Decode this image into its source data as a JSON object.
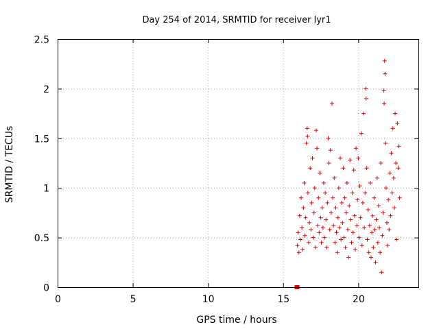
{
  "chart_data": {
    "type": "scatter",
    "title": "Day 254 of 2014, SRMTID for receiver lyr1",
    "xlabel": "GPS time / hours",
    "ylabel": "SRMTID / TECUs",
    "xlim": [
      0,
      24
    ],
    "ylim": [
      0,
      2.5
    ],
    "xticks": [
      0,
      5,
      10,
      15,
      20
    ],
    "yticks": [
      0,
      0.5,
      1,
      1.5,
      2,
      2.5
    ],
    "xtick_labels": [
      "0",
      "5",
      "10",
      "15",
      "20"
    ],
    "ytick_labels": [
      "0",
      "0.5",
      "1",
      "1.5",
      "2",
      "2.5"
    ],
    "grid": true,
    "marker": "+",
    "color": "#e00000",
    "series": [
      {
        "name": "SRMTID",
        "points": [
          [
            15.9,
            0.0
          ],
          [
            15.95,
            0.0
          ],
          [
            15.95,
            0.42
          ],
          [
            16.0,
            0.55
          ],
          [
            16.05,
            0.35
          ],
          [
            16.1,
            0.72
          ],
          [
            16.15,
            0.48
          ],
          [
            16.2,
            0.9
          ],
          [
            16.25,
            0.6
          ],
          [
            16.3,
            0.38
          ],
          [
            16.35,
            0.8
          ],
          [
            16.4,
            1.05
          ],
          [
            16.45,
            0.52
          ],
          [
            16.5,
            0.7
          ],
          [
            16.55,
            1.45
          ],
          [
            16.6,
            1.6
          ],
          [
            16.62,
            1.52
          ],
          [
            16.65,
            0.95
          ],
          [
            16.7,
            0.45
          ],
          [
            16.75,
            0.65
          ],
          [
            16.8,
            1.2
          ],
          [
            16.85,
            0.58
          ],
          [
            16.9,
            0.85
          ],
          [
            16.95,
            1.3
          ],
          [
            17.0,
            0.5
          ],
          [
            17.05,
            0.75
          ],
          [
            17.1,
            1.0
          ],
          [
            17.15,
            0.4
          ],
          [
            17.2,
            1.58
          ],
          [
            17.25,
            1.4
          ],
          [
            17.3,
            0.62
          ],
          [
            17.35,
            0.9
          ],
          [
            17.4,
            0.55
          ],
          [
            17.45,
            1.15
          ],
          [
            17.5,
            0.7
          ],
          [
            17.55,
            0.45
          ],
          [
            17.6,
            0.8
          ],
          [
            17.65,
            0.6
          ],
          [
            17.7,
            1.05
          ],
          [
            17.75,
            0.5
          ],
          [
            17.8,
            0.95
          ],
          [
            17.85,
            0.68
          ],
          [
            17.9,
            0.4
          ],
          [
            17.95,
            0.85
          ],
          [
            18.0,
            1.5
          ],
          [
            18.05,
            1.25
          ],
          [
            18.1,
            0.58
          ],
          [
            18.15,
            1.38
          ],
          [
            18.2,
            0.75
          ],
          [
            18.25,
            1.85
          ],
          [
            18.3,
            0.9
          ],
          [
            18.35,
            0.62
          ],
          [
            18.4,
            1.1
          ],
          [
            18.45,
            0.45
          ],
          [
            18.5,
            0.8
          ],
          [
            18.55,
            0.55
          ],
          [
            18.6,
            0.35
          ],
          [
            18.65,
            0.7
          ],
          [
            18.7,
            1.0
          ],
          [
            18.75,
            0.6
          ],
          [
            18.8,
            1.3
          ],
          [
            18.85,
            0.48
          ],
          [
            18.9,
            0.85
          ],
          [
            18.95,
            0.65
          ],
          [
            19.0,
            1.2
          ],
          [
            19.05,
            0.5
          ],
          [
            19.1,
            0.9
          ],
          [
            19.15,
            0.4
          ],
          [
            19.2,
            0.75
          ],
          [
            19.25,
            1.05
          ],
          [
            19.3,
            0.58
          ],
          [
            19.35,
            0.3
          ],
          [
            19.4,
            0.82
          ],
          [
            19.45,
            1.28
          ],
          [
            19.5,
            0.68
          ],
          [
            19.55,
            0.45
          ],
          [
            19.6,
            0.95
          ],
          [
            19.65,
            0.55
          ],
          [
            19.7,
            1.18
          ],
          [
            19.75,
            0.72
          ],
          [
            19.8,
            0.38
          ],
          [
            19.85,
            1.4
          ],
          [
            19.9,
            0.62
          ],
          [
            19.95,
            0.88
          ],
          [
            20.0,
            1.3
          ],
          [
            20.05,
            0.5
          ],
          [
            20.1,
            1.02
          ],
          [
            20.15,
            0.7
          ],
          [
            20.2,
            1.55
          ],
          [
            20.25,
            0.42
          ],
          [
            20.3,
            0.85
          ],
          [
            20.35,
            1.75
          ],
          [
            20.4,
            0.6
          ],
          [
            20.45,
            0.95
          ],
          [
            20.5,
            2.0
          ],
          [
            20.52,
            1.9
          ],
          [
            20.55,
            1.2
          ],
          [
            20.6,
            0.48
          ],
          [
            20.65,
            0.78
          ],
          [
            20.7,
            0.35
          ],
          [
            20.75,
            0.62
          ],
          [
            20.8,
            1.05
          ],
          [
            20.85,
            0.3
          ],
          [
            20.9,
            0.55
          ],
          [
            20.95,
            0.72
          ],
          [
            21.0,
            0.4
          ],
          [
            21.05,
            0.9
          ],
          [
            21.1,
            0.58
          ],
          [
            21.15,
            0.25
          ],
          [
            21.2,
            0.68
          ],
          [
            21.25,
            1.1
          ],
          [
            21.3,
            0.45
          ],
          [
            21.35,
            0.82
          ],
          [
            21.4,
            0.6
          ],
          [
            21.45,
            0.35
          ],
          [
            21.5,
            1.25
          ],
          [
            21.55,
            0.15
          ],
          [
            21.6,
            0.52
          ],
          [
            21.65,
            0.75
          ],
          [
            21.7,
            1.98
          ],
          [
            21.72,
            1.85
          ],
          [
            21.75,
            2.28
          ],
          [
            21.78,
            2.15
          ],
          [
            21.8,
            1.45
          ],
          [
            21.85,
            1.0
          ],
          [
            21.9,
            0.65
          ],
          [
            21.95,
            0.42
          ],
          [
            22.0,
            0.88
          ],
          [
            22.05,
            0.58
          ],
          [
            22.1,
            1.15
          ],
          [
            22.15,
            0.72
          ],
          [
            22.2,
            1.35
          ],
          [
            22.25,
            0.95
          ],
          [
            22.3,
            1.6
          ],
          [
            22.35,
            1.1
          ],
          [
            22.4,
            0.8
          ],
          [
            22.45,
            1.75
          ],
          [
            22.5,
            1.25
          ],
          [
            22.55,
            0.48
          ],
          [
            22.6,
            1.65
          ],
          [
            22.65,
            1.2
          ],
          [
            22.7,
            1.42
          ],
          [
            22.75,
            0.9
          ]
        ]
      }
    ]
  }
}
